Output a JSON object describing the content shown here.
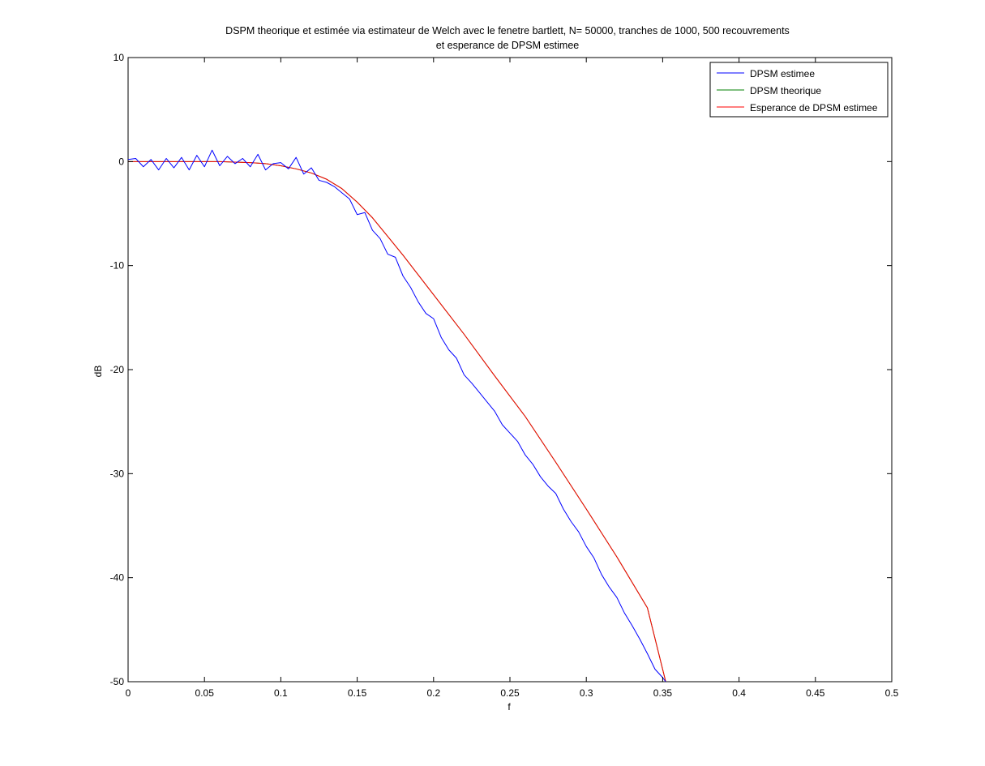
{
  "chart_data": {
    "type": "line",
    "title_lines": [
      "DSPM theorique et estimée via estimateur de Welch avec le fenetre bartlett, N= 50000, tranches de 1000, 500 recouvrements",
      "et esperance de DPSM estimee"
    ],
    "xlabel": "f",
    "ylabel": "dB",
    "xlim": [
      0,
      0.5
    ],
    "ylim": [
      -50,
      10
    ],
    "xticks": [
      0,
      0.05,
      0.1,
      0.15,
      0.2,
      0.25,
      0.3,
      0.35,
      0.4,
      0.45,
      0.5
    ],
    "xtick_labels": [
      "0",
      "0.05",
      "0.1",
      "0.15",
      "0.2",
      "0.25",
      "0.3",
      "0.35",
      "0.4",
      "0.45",
      "0.5"
    ],
    "yticks": [
      10,
      0,
      -10,
      -20,
      -30,
      -40,
      -50
    ],
    "ytick_labels": [
      "10",
      "0",
      "-10",
      "-20",
      "-30",
      "-40",
      "-50"
    ],
    "grid": false,
    "legend_position": "top-right",
    "series": [
      {
        "name": "DPSM estimee",
        "color": "#0000ff",
        "x": [
          0,
          0.005,
          0.01,
          0.015,
          0.02,
          0.025,
          0.03,
          0.035,
          0.04,
          0.045,
          0.05,
          0.055,
          0.06,
          0.065,
          0.07,
          0.075,
          0.08,
          0.085,
          0.09,
          0.095,
          0.1,
          0.105,
          0.11,
          0.115,
          0.12,
          0.125,
          0.13,
          0.135,
          0.14,
          0.145,
          0.15,
          0.155,
          0.16,
          0.165,
          0.17,
          0.175,
          0.18,
          0.185,
          0.19,
          0.195,
          0.2,
          0.205,
          0.21,
          0.215,
          0.22,
          0.225,
          0.23,
          0.235,
          0.24,
          0.245,
          0.25,
          0.255,
          0.26,
          0.265,
          0.27,
          0.275,
          0.28,
          0.285,
          0.29,
          0.295,
          0.3,
          0.305,
          0.31,
          0.315,
          0.32,
          0.325,
          0.33,
          0.335,
          0.34,
          0.345,
          0.35,
          0.352
        ],
        "values": [
          0.2,
          0.3,
          -0.5,
          0.2,
          -0.8,
          0.3,
          -0.6,
          0.4,
          -0.8,
          0.6,
          -0.5,
          1.1,
          -0.4,
          0.5,
          -0.2,
          0.3,
          -0.5,
          0.7,
          -0.8,
          -0.2,
          -0.1,
          -0.7,
          0.4,
          -1.2,
          -0.6,
          -1.8,
          -2.0,
          -2.4,
          -3.0,
          -3.6,
          -5.1,
          -4.9,
          -6.6,
          -7.4,
          -8.9,
          -9.2,
          -11.0,
          -12.1,
          -13.5,
          -14.6,
          -15.1,
          -16.9,
          -18.1,
          -18.9,
          -20.5,
          -21.3,
          -22.2,
          -23.1,
          -24.0,
          -25.3,
          -26.1,
          -26.9,
          -28.2,
          -29.1,
          -30.3,
          -31.2,
          -31.9,
          -33.4,
          -34.6,
          -35.6,
          -37.0,
          -38.1,
          -39.7,
          -40.9,
          -41.9,
          -43.4,
          -44.6,
          -45.9,
          -47.3,
          -48.8,
          -49.6,
          -50.0
        ]
      },
      {
        "name": "DPSM theorique",
        "color": "#008000",
        "x": [
          0,
          0.02,
          0.04,
          0.06,
          0.08,
          0.09,
          0.1,
          0.11,
          0.12,
          0.13,
          0.14,
          0.15,
          0.16,
          0.17,
          0.18,
          0.19,
          0.2,
          0.22,
          0.24,
          0.26,
          0.28,
          0.3,
          0.32,
          0.34,
          0.352
        ],
        "values": [
          0,
          0,
          0,
          0,
          -0.1,
          -0.2,
          -0.4,
          -0.7,
          -1.1,
          -1.7,
          -2.6,
          -3.9,
          -5.4,
          -7.2,
          -9.0,
          -10.9,
          -12.8,
          -16.6,
          -20.6,
          -24.5,
          -28.9,
          -33.4,
          -38.0,
          -42.9,
          -50.0
        ]
      },
      {
        "name": "Esperance de DPSM estimee",
        "color": "#ff0000",
        "x": [
          0,
          0.02,
          0.04,
          0.06,
          0.08,
          0.09,
          0.1,
          0.11,
          0.12,
          0.13,
          0.14,
          0.15,
          0.16,
          0.17,
          0.18,
          0.19,
          0.2,
          0.22,
          0.24,
          0.26,
          0.28,
          0.3,
          0.32,
          0.34,
          0.352
        ],
        "values": [
          0,
          0,
          0,
          0,
          -0.1,
          -0.2,
          -0.4,
          -0.7,
          -1.1,
          -1.7,
          -2.6,
          -3.9,
          -5.4,
          -7.2,
          -9.0,
          -10.9,
          -12.8,
          -16.6,
          -20.6,
          -24.5,
          -28.9,
          -33.4,
          -38.0,
          -42.9,
          -50.0
        ]
      }
    ]
  }
}
